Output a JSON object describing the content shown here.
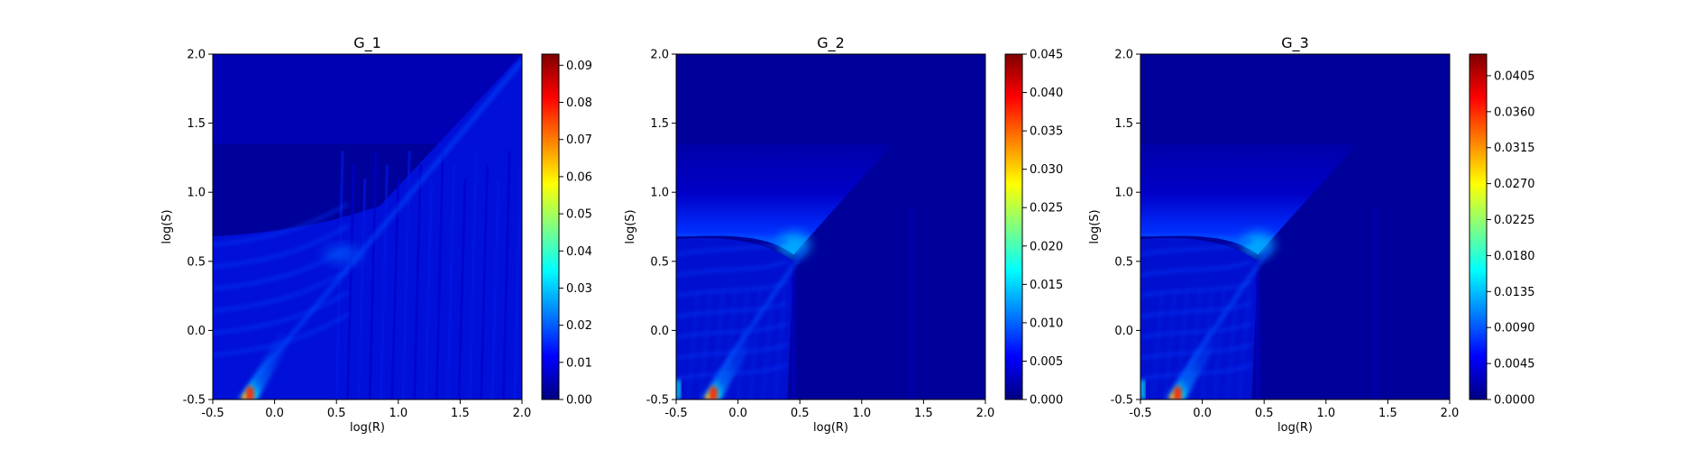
{
  "colors": {
    "jet_stops": [
      "#000080",
      "#0000ff",
      "#0080ff",
      "#00ffff",
      "#80ff80",
      "#ffff00",
      "#ff8000",
      "#ff0000",
      "#800000"
    ],
    "background": "#ffffff"
  },
  "chart_data": [
    {
      "type": "heatmap",
      "title": "G_1",
      "xlabel": "log(R)",
      "ylabel": "log(S)",
      "xlim": [
        -0.5,
        2.0
      ],
      "ylim": [
        -0.5,
        2.0
      ],
      "xticks": [
        "-0.5",
        "0.0",
        "0.5",
        "1.0",
        "1.5",
        "2.0"
      ],
      "yticks": [
        "-0.5",
        "0.0",
        "0.5",
        "1.0",
        "1.5",
        "2.0"
      ],
      "colorbar": {
        "min": 0.0,
        "max": 0.093,
        "ticks": [
          0.0,
          0.01,
          0.02,
          0.03,
          0.04,
          0.05,
          0.06,
          0.07,
          0.08,
          0.09
        ],
        "tick_labels": [
          "0.00",
          "0.01",
          "0.02",
          "0.03",
          "0.04",
          "0.05",
          "0.06",
          "0.07",
          "0.08",
          "0.09"
        ]
      },
      "colormap": "jet",
      "peak": {
        "x": -0.2,
        "y": -0.5,
        "value": 0.093
      }
    },
    {
      "type": "heatmap",
      "title": "G_2",
      "xlabel": "log(R)",
      "ylabel": "log(S)",
      "xlim": [
        -0.5,
        2.0
      ],
      "ylim": [
        -0.5,
        2.0
      ],
      "xticks": [
        "-0.5",
        "0.0",
        "0.5",
        "1.0",
        "1.5",
        "2.0"
      ],
      "yticks": [
        "-0.5",
        "0.0",
        "0.5",
        "1.0",
        "1.5",
        "2.0"
      ],
      "colorbar": {
        "min": 0.0,
        "max": 0.045,
        "ticks": [
          0.0,
          0.005,
          0.01,
          0.015,
          0.02,
          0.025,
          0.03,
          0.035,
          0.04,
          0.045
        ],
        "tick_labels": [
          "0.000",
          "0.005",
          "0.010",
          "0.015",
          "0.020",
          "0.025",
          "0.030",
          "0.035",
          "0.040",
          "0.045"
        ]
      },
      "colormap": "jet",
      "peak": {
        "x": -0.2,
        "y": -0.5,
        "value": 0.045
      }
    },
    {
      "type": "heatmap",
      "title": "G_3",
      "xlabel": "log(R)",
      "ylabel": "log(S)",
      "xlim": [
        -0.5,
        2.0
      ],
      "ylim": [
        -0.5,
        2.0
      ],
      "xticks": [
        "-0.5",
        "0.0",
        "0.5",
        "1.0",
        "1.5",
        "2.0"
      ],
      "yticks": [
        "-0.5",
        "0.0",
        "0.5",
        "1.0",
        "1.5",
        "2.0"
      ],
      "colorbar": {
        "min": 0.0,
        "max": 0.0432,
        "ticks": [
          0.0,
          0.0045,
          0.009,
          0.0135,
          0.018,
          0.0225,
          0.027,
          0.0315,
          0.036,
          0.0405
        ],
        "tick_labels": [
          "0.0000",
          "0.0045",
          "0.0090",
          "0.0135",
          "0.0180",
          "0.0225",
          "0.0270",
          "0.0315",
          "0.0360",
          "0.0405"
        ]
      },
      "colormap": "jet",
      "peak": {
        "x": -0.2,
        "y": -0.5,
        "value": 0.0432
      }
    }
  ]
}
